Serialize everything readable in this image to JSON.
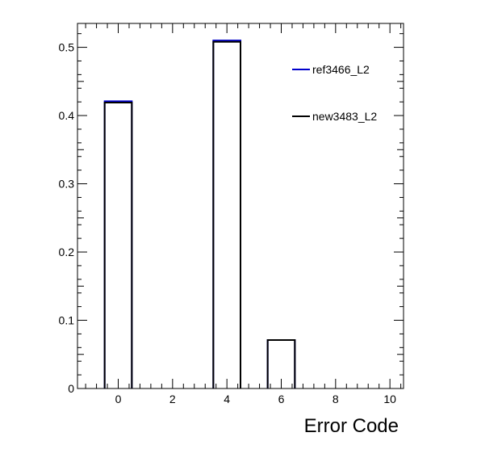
{
  "chart_data": {
    "type": "bar",
    "title": "",
    "xlabel": "Error Code",
    "ylabel": "",
    "bin_width": 1,
    "xlim": [
      -1.5,
      10.5
    ],
    "ylim": [
      0,
      0.535
    ],
    "x_ticks": [
      0,
      2,
      4,
      6,
      8,
      10
    ],
    "x_tick_labels": [
      "0",
      "2",
      "4",
      "6",
      "8",
      "10"
    ],
    "y_ticks": [
      0,
      0.1,
      0.2,
      0.3,
      0.4,
      0.5
    ],
    "y_tick_labels": [
      "0",
      "0.1",
      "0.2",
      "0.3",
      "0.4",
      "0.5"
    ],
    "grid": false,
    "legend_position": "top-right",
    "series": [
      {
        "name": "ref3466_L2",
        "color": "#0000cc",
        "x": [
          0,
          4,
          6
        ],
        "values": [
          0.421,
          0.51,
          0.071
        ]
      },
      {
        "name": "new3483_L2",
        "color": "#000000",
        "x": [
          0,
          4,
          6
        ],
        "values": [
          0.419,
          0.508,
          0.071
        ]
      }
    ]
  }
}
